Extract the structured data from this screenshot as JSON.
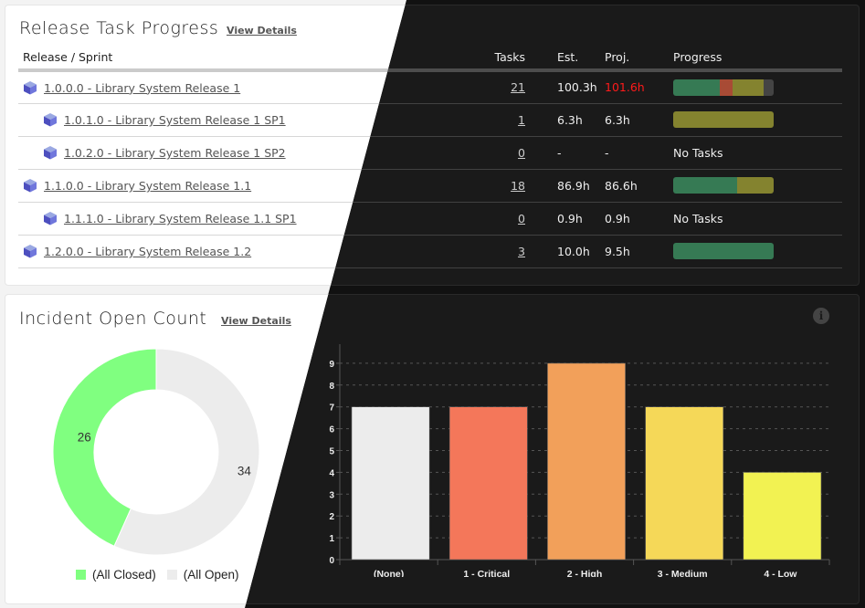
{
  "release_panel": {
    "title": "Release Task Progress",
    "view_details": "View Details",
    "columns": {
      "name": "Release / Sprint",
      "tasks": "Tasks",
      "est": "Est.",
      "proj": "Proj.",
      "progress": "Progress"
    },
    "rows": [
      {
        "name": "1.0.0.0 - Library System Release 1",
        "level": 0,
        "tasks": "21",
        "est": "100.3h",
        "proj": "101.6h",
        "over": true,
        "progress": [
          {
            "pct": 46,
            "color": "#367a54"
          },
          {
            "pct": 13,
            "color": "#a84b35"
          },
          {
            "pct": 31,
            "color": "#84832f"
          },
          {
            "pct": 10,
            "color": "#444444"
          }
        ],
        "no_tasks": ""
      },
      {
        "name": "1.0.1.0 - Library System Release 1 SP1",
        "level": 1,
        "tasks": "1",
        "est": "6.3h",
        "proj": "6.3h",
        "over": false,
        "progress": [
          {
            "pct": 100,
            "color": "#84832f"
          }
        ],
        "no_tasks": ""
      },
      {
        "name": "1.0.2.0 - Library System Release 1 SP2",
        "level": 1,
        "tasks": "0",
        "est": "-",
        "proj": "-",
        "over": false,
        "progress": [],
        "no_tasks": "No Tasks"
      },
      {
        "name": "1.1.0.0 - Library System Release 1.1",
        "level": 0,
        "tasks": "18",
        "est": "86.9h",
        "proj": "86.6h",
        "over": false,
        "progress": [
          {
            "pct": 64,
            "color": "#367a54"
          },
          {
            "pct": 36,
            "color": "#84832f"
          }
        ],
        "no_tasks": ""
      },
      {
        "name": "1.1.1.0 - Library System Release 1.1 SP1",
        "level": 1,
        "tasks": "0",
        "est": "0.9h",
        "proj": "0.9h",
        "over": false,
        "progress": [],
        "no_tasks": "No Tasks"
      },
      {
        "name": "1.2.0.0 - Library System Release 1.2",
        "level": 0,
        "tasks": "3",
        "est": "10.0h",
        "proj": "9.5h",
        "over": false,
        "progress": [
          {
            "pct": 100,
            "color": "#367a54"
          }
        ],
        "no_tasks": ""
      }
    ]
  },
  "incident_panel": {
    "title": "Incident Open Count",
    "view_details": "View Details",
    "info_icon": "info-icon"
  },
  "chart_data": [
    {
      "type": "pie",
      "variant": "donut",
      "categories": [
        "(All Closed)",
        "(All Open)"
      ],
      "values": [
        26,
        34
      ],
      "colors": [
        "#80ff80",
        "#ececec"
      ],
      "legend": "bottom"
    },
    {
      "type": "bar",
      "categories": [
        "(None)",
        "1 - Critical",
        "2 - High",
        "3 - Medium",
        "4 - Low"
      ],
      "values": [
        7,
        7,
        9,
        7,
        4
      ],
      "colors": [
        "#ececec",
        "#f4775a",
        "#f2a05a",
        "#f5d858",
        "#f2f252"
      ],
      "ylim": [
        0,
        10
      ],
      "yticks": [
        0,
        1,
        2,
        3,
        4,
        5,
        6,
        7,
        8,
        9
      ],
      "grid": true,
      "xlabel": "",
      "ylabel": "",
      "title": ""
    }
  ]
}
